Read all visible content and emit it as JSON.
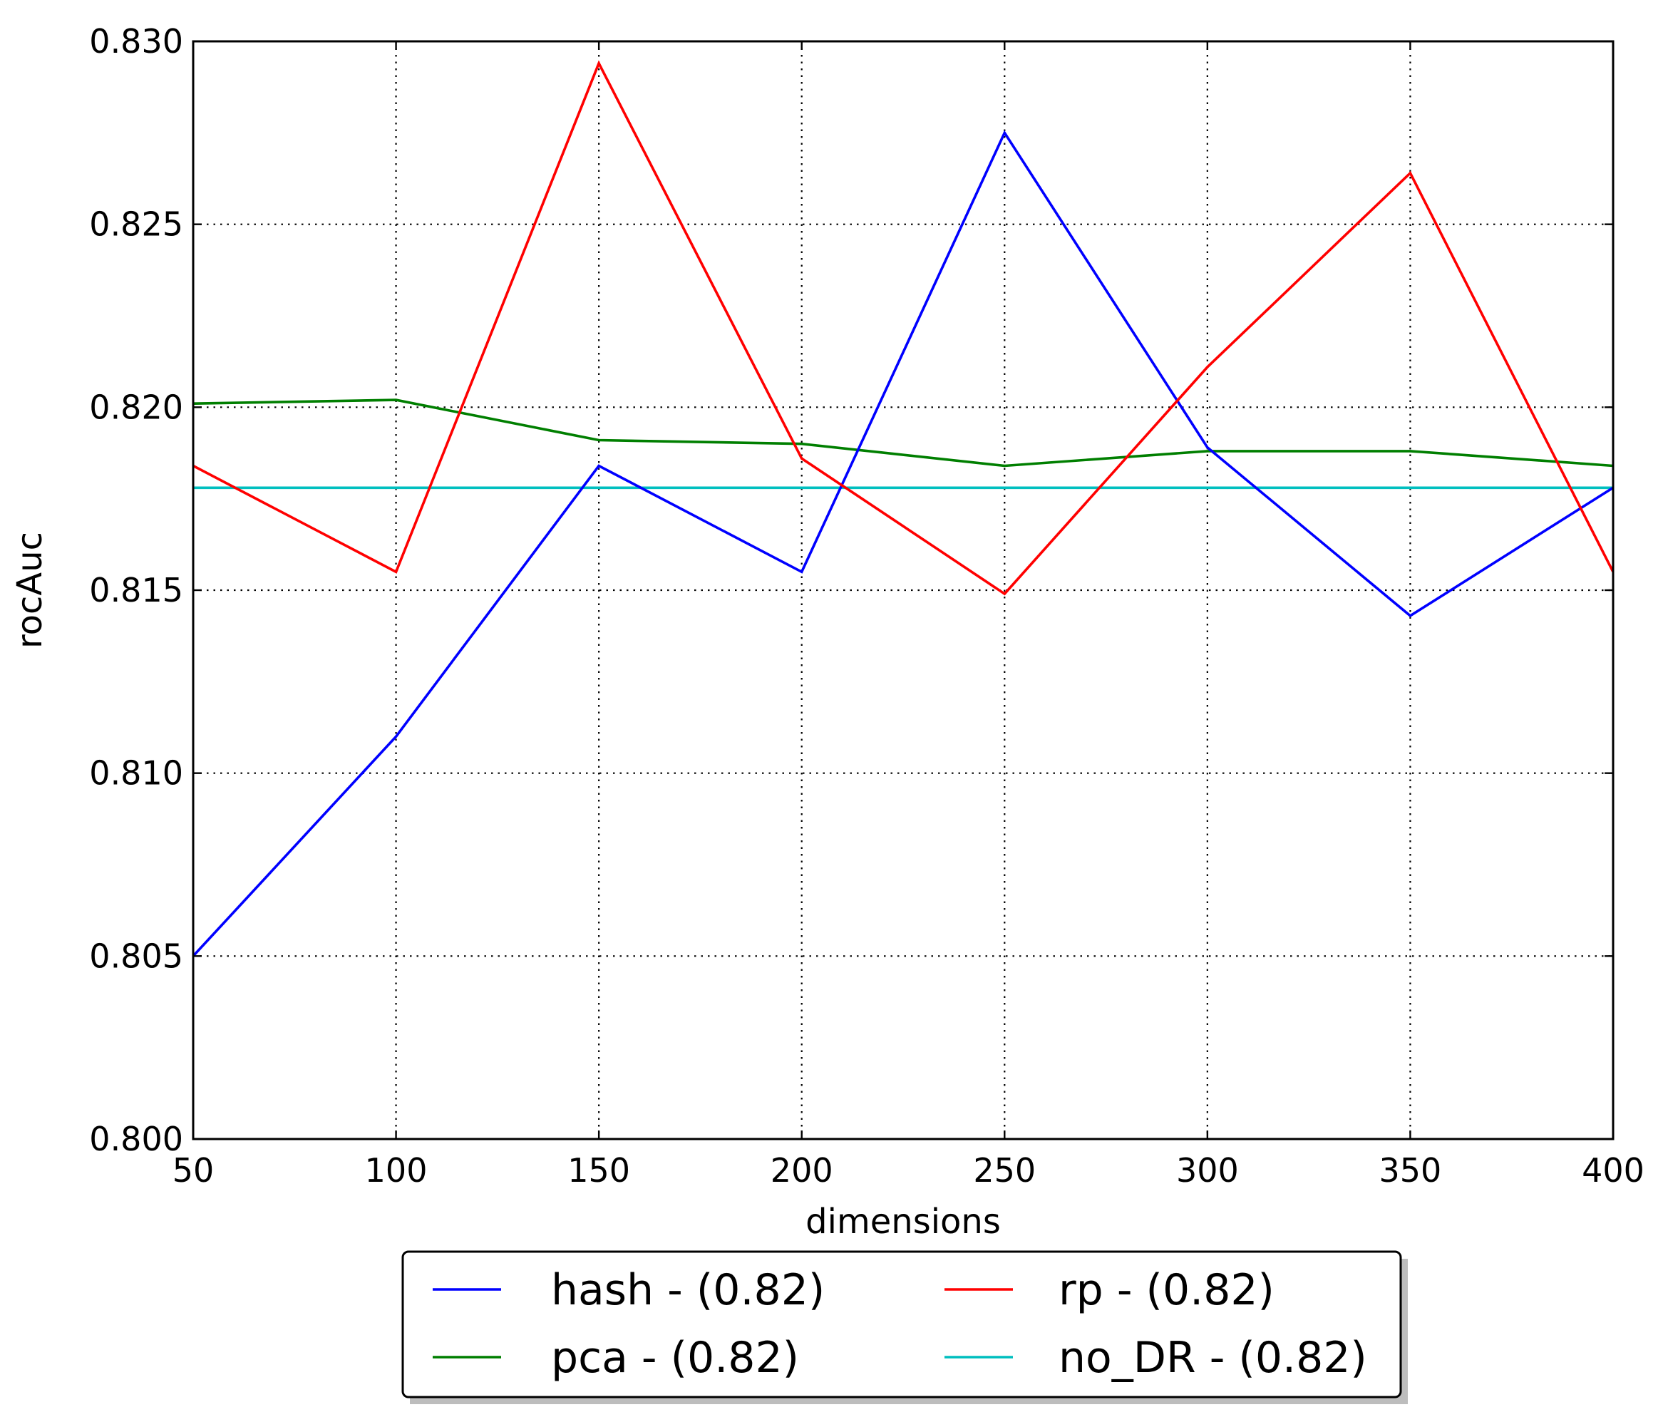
{
  "chart_data": {
    "type": "line",
    "title": "",
    "xlabel": "dimensions",
    "ylabel": "rocAuc",
    "xlim": [
      50,
      400
    ],
    "ylim": [
      0.8,
      0.83
    ],
    "xticks": [
      50,
      100,
      150,
      200,
      250,
      300,
      350,
      400
    ],
    "yticks": [
      0.8,
      0.805,
      0.81,
      0.815,
      0.82,
      0.825,
      0.83
    ],
    "xtick_labels": [
      "50",
      "100",
      "150",
      "200",
      "250",
      "300",
      "350",
      "400"
    ],
    "ytick_labels": [
      "0.800",
      "0.805",
      "0.810",
      "0.815",
      "0.820",
      "0.825",
      "0.830"
    ],
    "grid": true,
    "legend_position": "bottom-center-outside",
    "x": [
      50,
      100,
      150,
      200,
      250,
      300,
      350,
      400
    ],
    "series": [
      {
        "name": "hash - (0.82)",
        "color": "#0000ff",
        "values": [
          0.805,
          0.811,
          0.8184,
          0.8155,
          0.8275,
          0.8189,
          0.8143,
          0.8178
        ]
      },
      {
        "name": "rp - (0.82)",
        "color": "#ff0000",
        "values": [
          0.8184,
          0.8155,
          0.8294,
          0.8186,
          0.8149,
          0.8211,
          0.8264,
          0.8155
        ]
      },
      {
        "name": "pca - (0.82)",
        "color": "#007f00",
        "values": [
          0.8201,
          0.8202,
          0.8191,
          0.819,
          0.8184,
          0.8188,
          0.8188,
          0.8184
        ]
      },
      {
        "name": "no_DR - (0.82)",
        "color": "#00bfbf",
        "values": [
          0.8178,
          0.8178,
          0.8178,
          0.8178,
          0.8178,
          0.8178,
          0.8178,
          0.8178
        ]
      }
    ]
  }
}
